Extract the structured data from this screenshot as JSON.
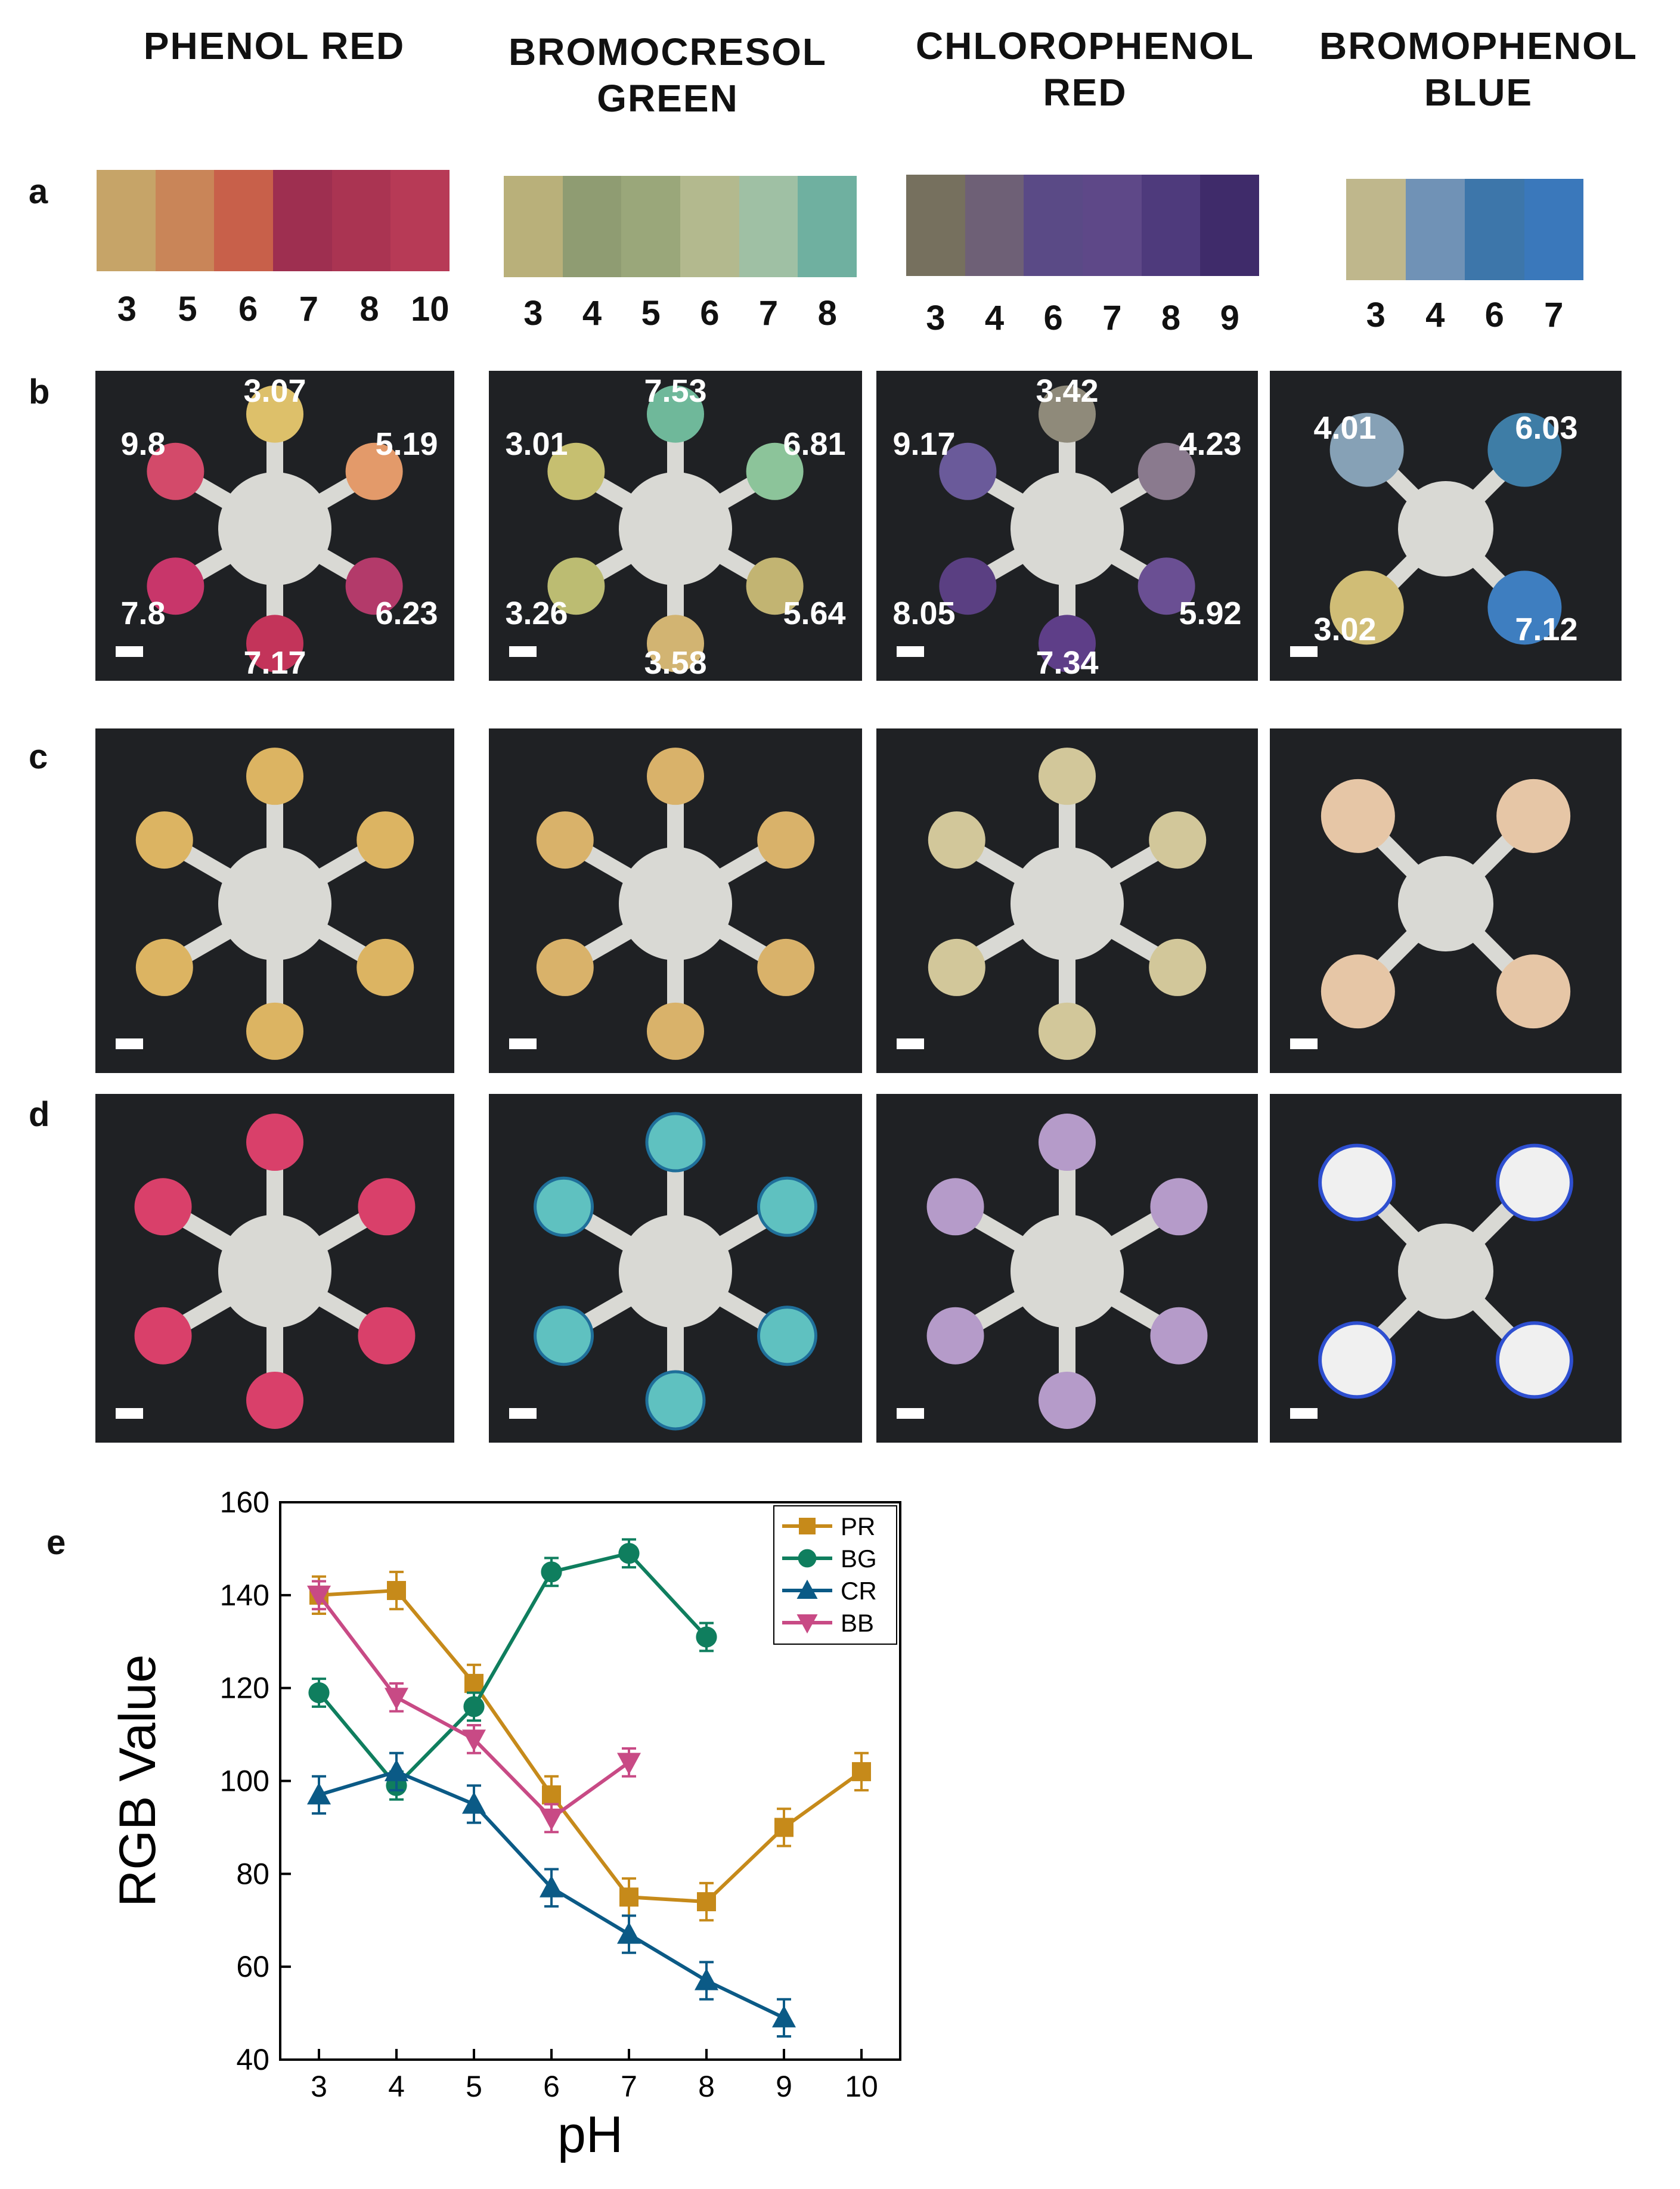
{
  "columns": [
    {
      "title_lines": [
        "PHENOL RED"
      ],
      "strip_labels": [
        "3",
        "5",
        "6",
        "7",
        "8",
        "10"
      ],
      "strip_colors": [
        "#c6a468",
        "#c98558",
        "#c8604a",
        "#9e2f50",
        "#aa3452",
        "#b73a56"
      ],
      "b_labels": [
        "3.07",
        "5.19",
        "6.23",
        "7.17",
        "7.8",
        "9.8"
      ],
      "b_spot_colors": [
        "#ddc06a",
        "#e39a6a",
        "#b33a6a",
        "#c3345a",
        "#c8366a",
        "#d34a6a"
      ],
      "c_spot_color": "#dcb462",
      "d_spot_color": "#d9406a"
    },
    {
      "title_lines": [
        "BROMOCRESOL",
        "GREEN"
      ],
      "strip_labels": [
        "3",
        "4",
        "5",
        "6",
        "7",
        "8"
      ],
      "strip_colors": [
        "#b9b07a",
        "#8f9c72",
        "#9aa77a",
        "#b3b98e",
        "#9fc0a4",
        "#6fb0a0"
      ],
      "b_labels": [
        "7.53",
        "6.81",
        "5.64",
        "3.58",
        "3.26",
        "3.01"
      ],
      "b_spot_colors": [
        "#6fb89a",
        "#8cc49a",
        "#c2b472",
        "#d2b472",
        "#bcbc72",
        "#c6bf70"
      ],
      "c_spot_color": "#d9b26a",
      "d_spot_color": "#5fc1c0"
    },
    {
      "title_lines": [
        "CHLOROPHENOL",
        "RED"
      ],
      "strip_labels": [
        "3",
        "4",
        "6",
        "7",
        "8",
        "9"
      ],
      "strip_colors": [
        "#76705e",
        "#6e6076",
        "#5a4a86",
        "#5e4888",
        "#4e3a7c",
        "#3f2b6a"
      ],
      "b_labels": [
        "3.42",
        "4.23",
        "5.92",
        "7.34",
        "8.05",
        "9.17"
      ],
      "b_spot_colors": [
        "#8f8a7a",
        "#8a7a8e",
        "#6a4f93",
        "#5e3e88",
        "#5a3f82",
        "#6a5a9a"
      ],
      "c_spot_color": "#d2c79a",
      "d_spot_color": "#b59bc9"
    },
    {
      "title_lines": [
        "BROMOPHENOL",
        "BLUE"
      ],
      "strip_labels": [
        "3",
        "4",
        "6",
        "7"
      ],
      "strip_colors": [
        "#bfb78c",
        "#7092b6",
        "#3d76aa",
        "#3a78bb"
      ],
      "b_labels": [
        "4.01",
        "6.03",
        "7.12",
        "3.02"
      ],
      "b_spot_colors": [
        "#86a1b6",
        "#3e7da6",
        "#3e7ec0",
        "#d0bd76"
      ],
      "c_spot_color": "#e6c6a6",
      "d_spot_color": "#f0f0f0"
    }
  ],
  "panel_letters": [
    "a",
    "b",
    "c",
    "d",
    "e"
  ],
  "colors": {
    "photo_bg": "#1f2124",
    "device_paper": "#d9d9d4",
    "d_ring_blue": "#2e4fd0"
  },
  "chart_data": {
    "type": "line",
    "xlabel": "pH",
    "ylabel": "RGB Value",
    "xlim": [
      2.5,
      10.5
    ],
    "ylim": [
      40,
      160
    ],
    "xticks": [
      3,
      4,
      5,
      6,
      7,
      8,
      9,
      10
    ],
    "yticks": [
      40,
      60,
      80,
      100,
      120,
      140,
      160
    ],
    "legend_position": "top-right",
    "series": [
      {
        "name": "PR",
        "color": "#c68a1a",
        "marker": "square",
        "x": [
          3,
          4,
          5,
          6,
          7,
          8,
          9,
          10
        ],
        "y": [
          140,
          141,
          121,
          97,
          75,
          74,
          90,
          102
        ],
        "err": [
          4,
          4,
          4,
          4,
          4,
          4,
          4,
          4
        ]
      },
      {
        "name": "BG",
        "color": "#0f7e5e",
        "marker": "circle",
        "x": [
          3,
          4,
          5,
          6,
          7,
          8
        ],
        "y": [
          119,
          99,
          116,
          145,
          149,
          131
        ],
        "err": [
          3,
          3,
          3,
          3,
          3,
          3
        ]
      },
      {
        "name": "CR",
        "color": "#0b5a86",
        "marker": "triangle-up",
        "x": [
          3,
          4,
          5,
          6,
          7,
          8,
          9
        ],
        "y": [
          97,
          102,
          95,
          77,
          67,
          57,
          49
        ],
        "err": [
          4,
          4,
          4,
          4,
          4,
          4,
          4
        ]
      },
      {
        "name": "BB",
        "color": "#c84a85",
        "marker": "triangle-down",
        "x": [
          3,
          4,
          5,
          6,
          7
        ],
        "y": [
          140,
          118,
          109,
          92,
          104
        ],
        "err": [
          3,
          3,
          3,
          3,
          3
        ]
      }
    ]
  }
}
